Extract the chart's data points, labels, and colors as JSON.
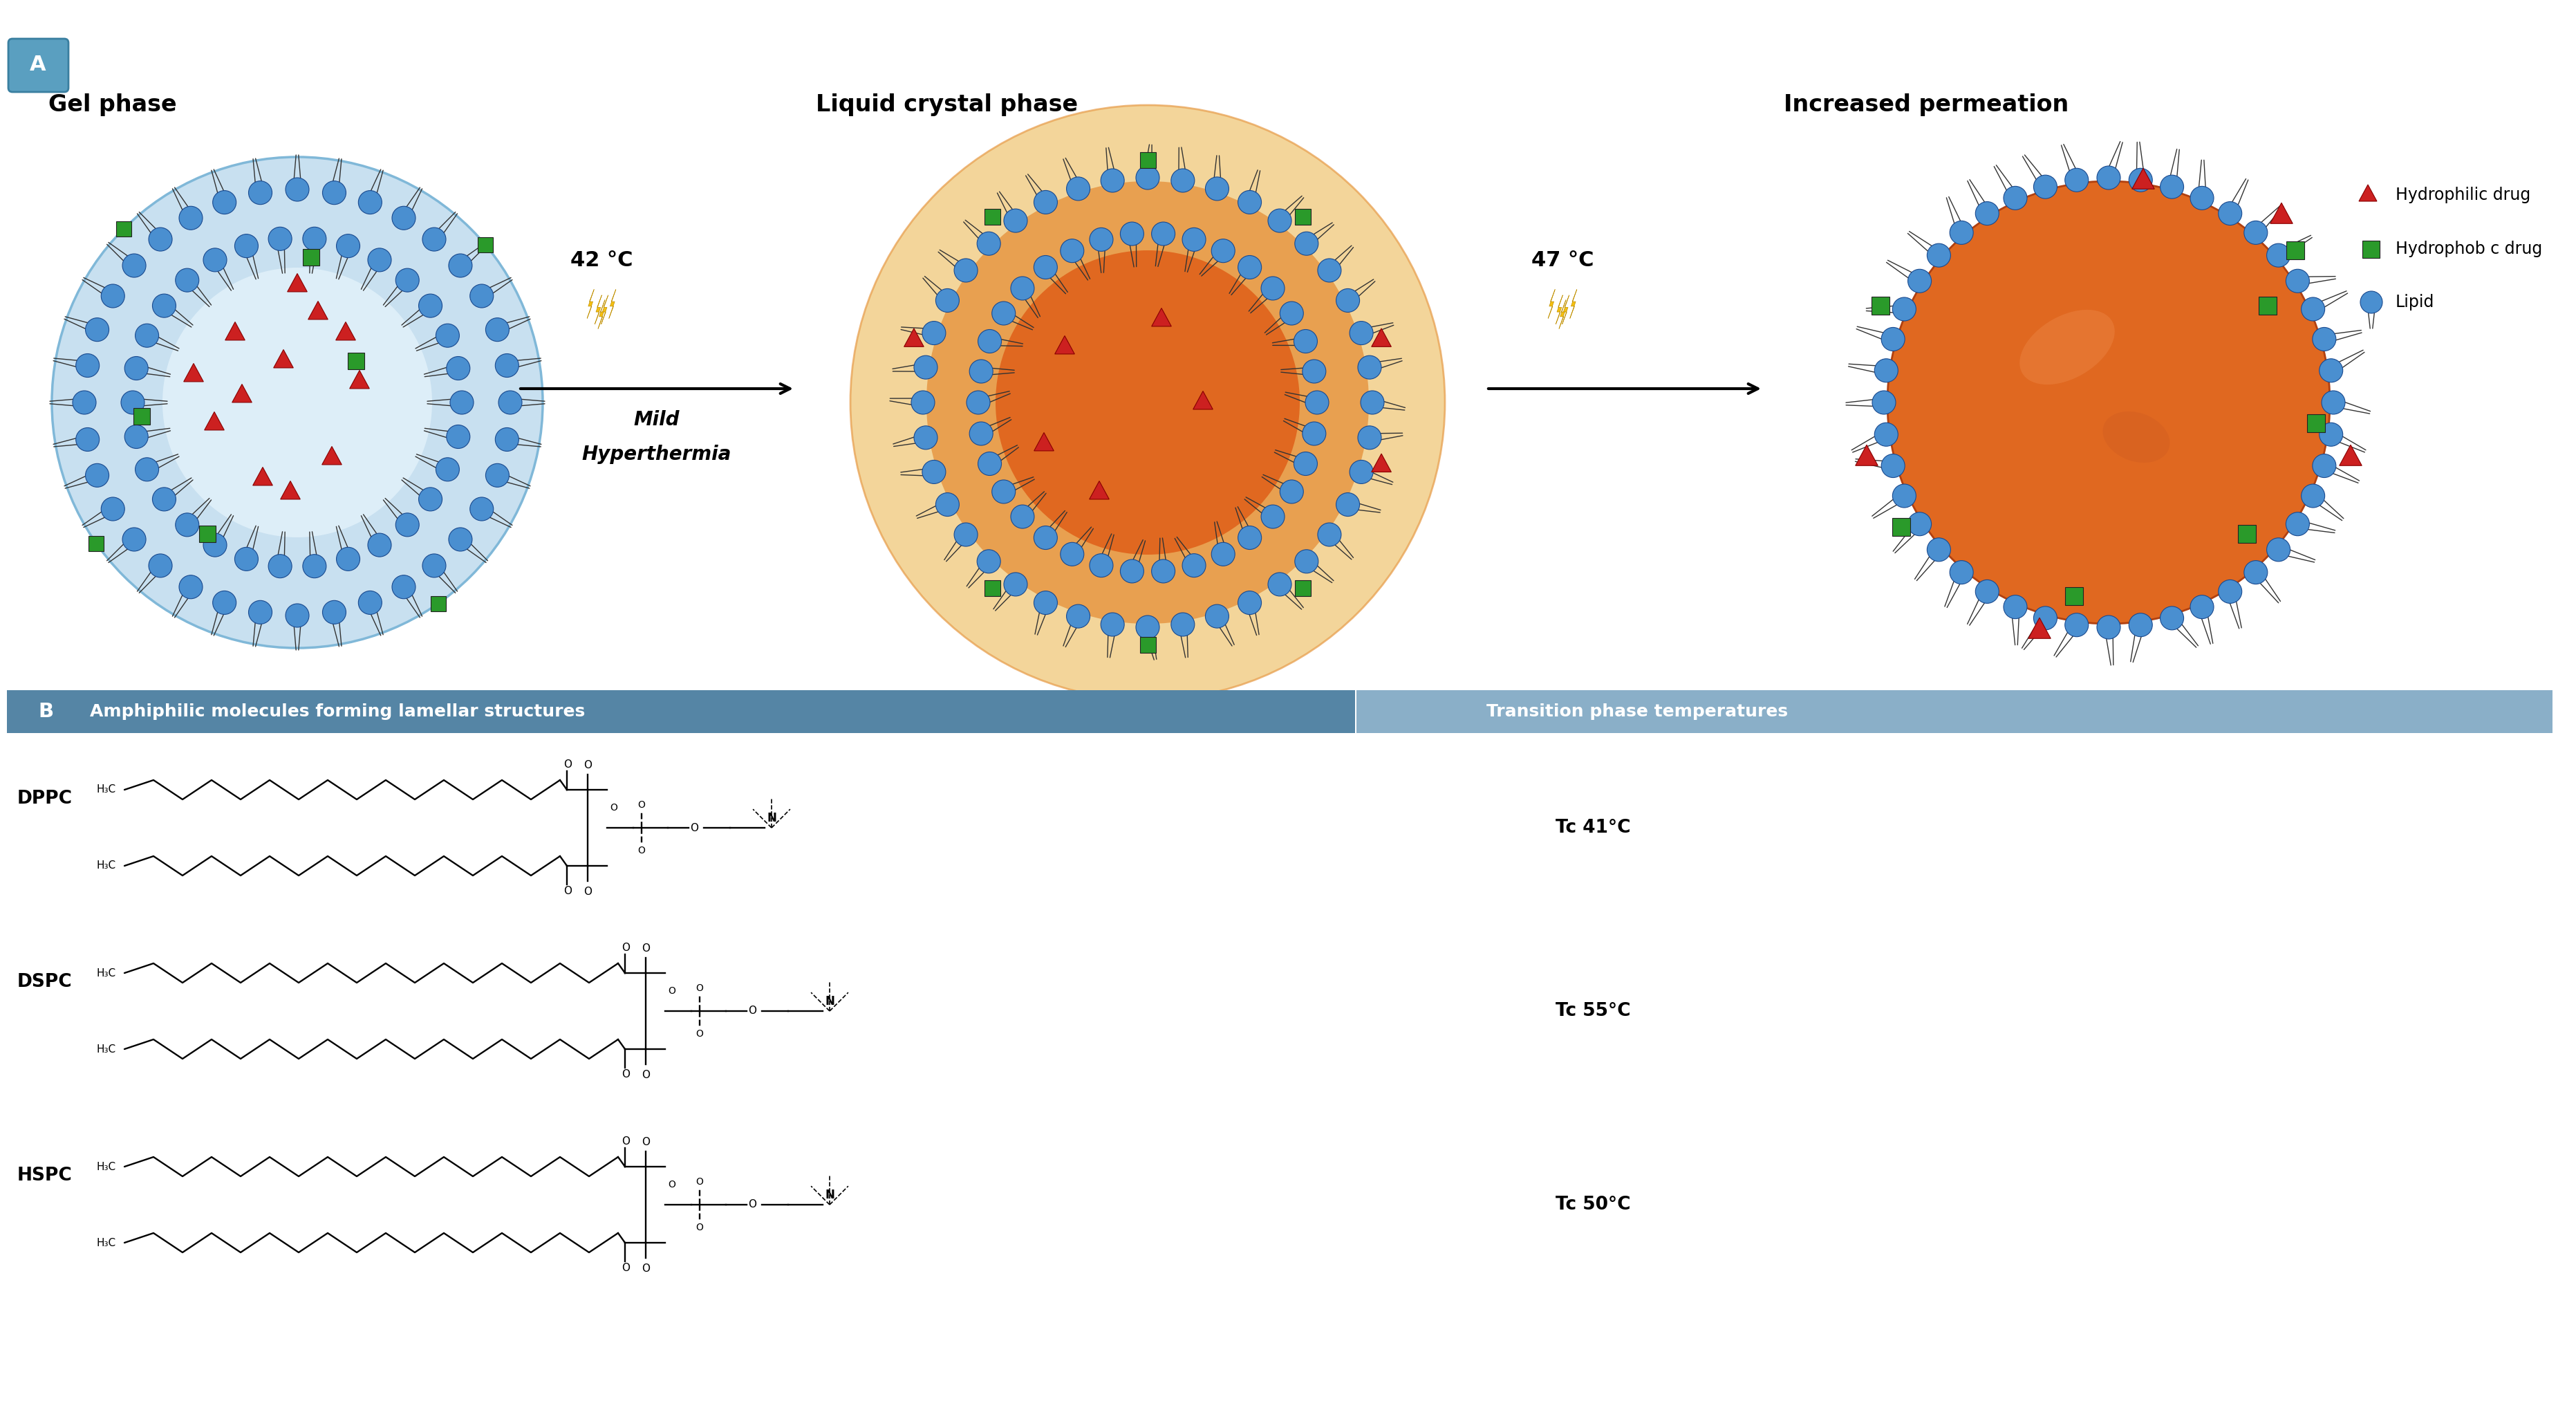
{
  "stage1_title": "Gel phase",
  "stage2_title": "Liquid crystal phase",
  "stage3_title": "Increased permeation",
  "temp1": "42 °C",
  "temp2": "47 °C",
  "arrow1_label_line1": "Mild",
  "arrow1_label_line2": "Hyperthermia",
  "legend_items": [
    "Hydrophilic drug",
    "Hydrophob c drug",
    "Lipid"
  ],
  "panel_B_header_left": "Amphiphilic molecules forming lamellar structures",
  "panel_B_header_right": "Transition phase temperatures",
  "lipid_names": [
    "DPPC",
    "DSPC",
    "HSPC"
  ],
  "lipid_temps": [
    "Tc 41°C",
    "Tc 55°C",
    "Tc 50°C"
  ],
  "bg_color": "#ffffff",
  "header_color_left": "#5585a5",
  "header_color_right": "#8aafc8",
  "blue_sphere": "#4a8fd0",
  "blue_sphere_dark": "#1a4a8f",
  "blue_sphere_light": "#90c0f0",
  "gel_bg": "#c8e0f0",
  "gel_interior": "#ddeef8",
  "orange_glow": "#f0c878",
  "orange_outer": "#e8a050",
  "orange_inner": "#e06820",
  "orange_right": "#e06820",
  "orange_right_light": "#f08030",
  "green_square": "#2a9a2a",
  "red_triangle": "#cc2020",
  "bolt_color": "#f5c010",
  "bolt_edge": "#c09000",
  "arrow_color": "#111111",
  "text_black": "#000000",
  "A_box_color": "#5a9fc0",
  "B_box_color": "#5585a5"
}
